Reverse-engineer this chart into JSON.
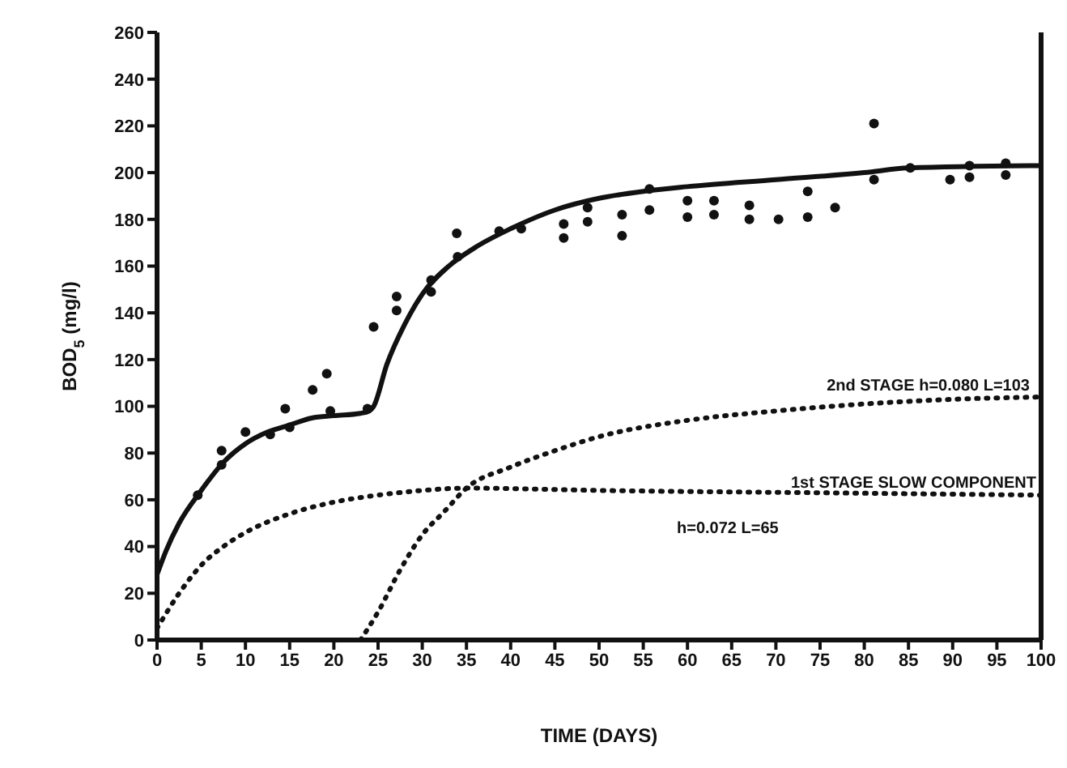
{
  "chart_data": {
    "type": "line",
    "xlabel": "TIME (DAYS)",
    "ylabel": "BOD$_{5}$ (mg/l)",
    "xlim": [
      0,
      100
    ],
    "xticks": [
      0,
      5,
      10,
      15,
      20,
      25,
      30,
      35,
      40,
      45,
      50,
      55,
      60,
      65,
      70,
      75,
      80,
      85,
      90,
      95,
      100
    ],
    "ylim": [
      0,
      260
    ],
    "yticks": [
      0,
      20,
      40,
      60,
      80,
      100,
      120,
      140,
      160,
      180,
      200,
      220,
      240,
      260
    ],
    "series": [
      {
        "type": "scatter",
        "marker": "circle",
        "color": "#111111",
        "x": [
          4.6,
          7.3,
          7.3,
          10,
          12.8,
          14.5,
          15,
          17.6,
          19.2,
          19.6,
          23.8,
          24.5,
          27.1,
          27.1,
          31,
          31,
          33.9,
          34,
          38.7,
          41.2,
          46,
          46,
          48.7,
          48.7,
          52.6,
          52.6,
          55.7,
          55.7,
          60,
          60,
          63,
          63,
          67,
          67,
          70.3,
          73.6,
          73.6,
          76.7,
          81.1,
          81.1,
          85.2,
          89.7,
          91.9,
          91.9,
          96,
          96
        ],
        "values": [
          62,
          75,
          81,
          89,
          88,
          99,
          91,
          107,
          114,
          98,
          99,
          134,
          147,
          141,
          154,
          149,
          174,
          164,
          175,
          176,
          178,
          172,
          179,
          185,
          182,
          173,
          184,
          193,
          188,
          181,
          188,
          182,
          186,
          180,
          180,
          192,
          181,
          185,
          221,
          197,
          202,
          197,
          203,
          198,
          204,
          199
        ]
      },
      {
        "marker": "none",
        "line_style": "solid",
        "color": "#111111",
        "x": [
          0,
          1,
          2.5,
          5,
          7.5,
          10,
          12.5,
          15,
          17.5,
          20,
          23,
          24,
          24.5,
          26,
          28,
          30,
          33,
          36,
          40,
          45,
          50,
          55,
          60,
          70,
          80,
          85,
          100
        ],
        "values": [
          28,
          38,
          50,
          64,
          76,
          84,
          89,
          92,
          95,
          96,
          97,
          98,
          100,
          118,
          135,
          148,
          160,
          168,
          176,
          184,
          189,
          192,
          194,
          197,
          200,
          202,
          203
        ]
      },
      {
        "marker": "none",
        "line_style": "dotted",
        "color": "#111111",
        "x": [
          0,
          2.5,
          5,
          7.5,
          10,
          15,
          20,
          25,
          30,
          35,
          50,
          75,
          100
        ],
        "values": [
          5,
          20,
          32,
          40,
          46,
          54,
          59,
          62,
          64,
          65,
          64,
          63,
          62
        ]
      },
      {
        "marker": "none",
        "line_style": "dotted",
        "color": "#111111",
        "x": [
          23,
          25,
          27.5,
          30,
          32.5,
          35,
          40,
          45,
          50,
          60,
          70,
          80,
          90,
          100
        ],
        "values": [
          0,
          12,
          30,
          45,
          55,
          65,
          74,
          81,
          87,
          94,
          98,
          101,
          103,
          104
        ]
      }
    ],
    "annotations": [
      "2nd STAGE h=0.080 L=103",
      "1st STAGE SLOW COMPONENT",
      "h=0.072 L=65"
    ]
  }
}
